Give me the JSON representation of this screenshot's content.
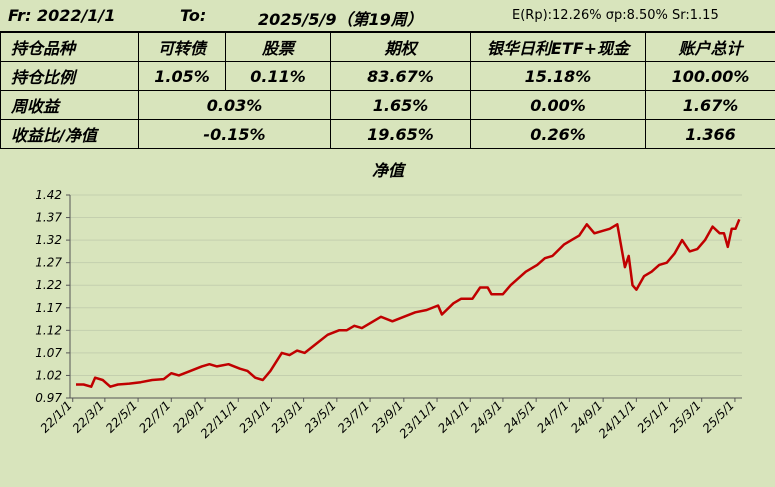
{
  "header": {
    "from": "Fr: 2022/1/1",
    "to": "To:",
    "date": "2025/5/9（第19周）",
    "stats": "E(Rp):12.26%  σp:8.50%  Sr:1.15"
  },
  "table": {
    "rows": [
      [
        "持仓品种",
        "可转债",
        "股票",
        "期权",
        "银华日利ETF+现金",
        "账户总计"
      ],
      [
        "持仓比例",
        "1.05%",
        "0.11%",
        "83.67%",
        "15.18%",
        "100.00%"
      ],
      [
        "周收益",
        "0.03%",
        "1.65%",
        "0.00%",
        "1.67%"
      ],
      [
        "收益比/净值",
        "-0.15%",
        "19.65%",
        "0.26%",
        "1.366"
      ]
    ]
  },
  "chart_data": {
    "type": "line",
    "title": "净值",
    "color": "#c00000",
    "grid": true,
    "x": [
      "2022-01-07",
      "2022-01-21",
      "2022-02-04",
      "2022-02-11",
      "2022-02-25",
      "2022-03-11",
      "2022-03-25",
      "2022-04-15",
      "2022-05-06",
      "2022-05-27",
      "2022-06-17",
      "2022-07-01",
      "2022-07-15",
      "2022-08-05",
      "2022-08-26",
      "2022-09-09",
      "2022-09-23",
      "2022-10-14",
      "2022-11-04",
      "2022-11-18",
      "2022-12-02",
      "2022-12-16",
      "2022-12-30",
      "2023-01-20",
      "2023-02-03",
      "2023-02-17",
      "2023-03-03",
      "2023-03-24",
      "2023-04-14",
      "2023-05-05",
      "2023-05-19",
      "2023-06-02",
      "2023-06-16",
      "2023-07-07",
      "2023-07-21",
      "2023-08-11",
      "2023-09-01",
      "2023-09-22",
      "2023-10-13",
      "2023-11-03",
      "2023-11-10",
      "2023-12-01",
      "2023-12-15",
      "2024-01-05",
      "2024-01-19",
      "2024-02-02",
      "2024-02-09",
      "2024-03-01",
      "2024-03-15",
      "2024-04-12",
      "2024-05-03",
      "2024-05-17",
      "2024-05-31",
      "2024-06-21",
      "2024-07-05",
      "2024-07-19",
      "2024-08-02",
      "2024-08-16",
      "2024-08-30",
      "2024-09-13",
      "2024-09-27",
      "2024-10-11",
      "2024-10-18",
      "2024-10-25",
      "2024-11-01",
      "2024-11-15",
      "2024-11-29",
      "2024-12-13",
      "2024-12-27",
      "2025-01-10",
      "2025-01-24",
      "2025-02-07",
      "2025-02-21",
      "2025-03-07",
      "2025-03-21",
      "2025-04-03",
      "2025-04-11",
      "2025-04-18",
      "2025-04-25",
      "2025-05-02",
      "2025-05-09"
    ],
    "values": [
      1.0,
      1.0,
      0.995,
      1.015,
      1.01,
      0.995,
      1.0,
      1.002,
      1.005,
      1.01,
      1.012,
      1.025,
      1.02,
      1.03,
      1.04,
      1.045,
      1.04,
      1.045,
      1.035,
      1.03,
      1.015,
      1.01,
      1.03,
      1.07,
      1.065,
      1.075,
      1.07,
      1.09,
      1.11,
      1.12,
      1.12,
      1.13,
      1.125,
      1.14,
      1.15,
      1.14,
      1.15,
      1.16,
      1.165,
      1.175,
      1.155,
      1.18,
      1.19,
      1.19,
      1.215,
      1.215,
      1.2,
      1.2,
      1.22,
      1.25,
      1.265,
      1.28,
      1.285,
      1.31,
      1.32,
      1.33,
      1.355,
      1.335,
      1.34,
      1.345,
      1.355,
      1.26,
      1.285,
      1.22,
      1.21,
      1.24,
      1.25,
      1.265,
      1.27,
      1.29,
      1.32,
      1.295,
      1.3,
      1.32,
      1.35,
      1.335,
      1.335,
      1.305,
      1.345,
      1.345,
      1.366
    ],
    "xlim": [
      "2021-12-27",
      "2025-05-14"
    ],
    "xticks": [
      {
        "value": "2022-01-01",
        "label": "22/1/1"
      },
      {
        "value": "2022-03-01",
        "label": "22/3/1"
      },
      {
        "value": "2022-05-01",
        "label": "22/5/1"
      },
      {
        "value": "2022-07-01",
        "label": "22/7/1"
      },
      {
        "value": "2022-09-01",
        "label": "22/9/1"
      },
      {
        "value": "2022-11-01",
        "label": "22/11/1"
      },
      {
        "value": "2023-01-01",
        "label": "23/1/1"
      },
      {
        "value": "2023-03-01",
        "label": "23/3/1"
      },
      {
        "value": "2023-05-01",
        "label": "23/5/1"
      },
      {
        "value": "2023-07-01",
        "label": "23/7/1"
      },
      {
        "value": "2023-09-01",
        "label": "23/9/1"
      },
      {
        "value": "2023-11-01",
        "label": "23/11/1"
      },
      {
        "value": "2024-01-01",
        "label": "24/1/1"
      },
      {
        "value": "2024-03-01",
        "label": "24/3/1"
      },
      {
        "value": "2024-05-01",
        "label": "24/5/1"
      },
      {
        "value": "2024-07-01",
        "label": "24/7/1"
      },
      {
        "value": "2024-09-01",
        "label": "24/9/1"
      },
      {
        "value": "2024-11-01",
        "label": "24/11/1"
      },
      {
        "value": "2025-01-01",
        "label": "25/1/1"
      },
      {
        "value": "2025-03-01",
        "label": "25/3/1"
      },
      {
        "value": "2025-05-01",
        "label": "25/5/1"
      }
    ],
    "ylim": [
      0.97,
      1.42
    ],
    "yticks": [
      0.97,
      1.02,
      1.07,
      1.12,
      1.17,
      1.22,
      1.27,
      1.32,
      1.37,
      1.42
    ]
  }
}
